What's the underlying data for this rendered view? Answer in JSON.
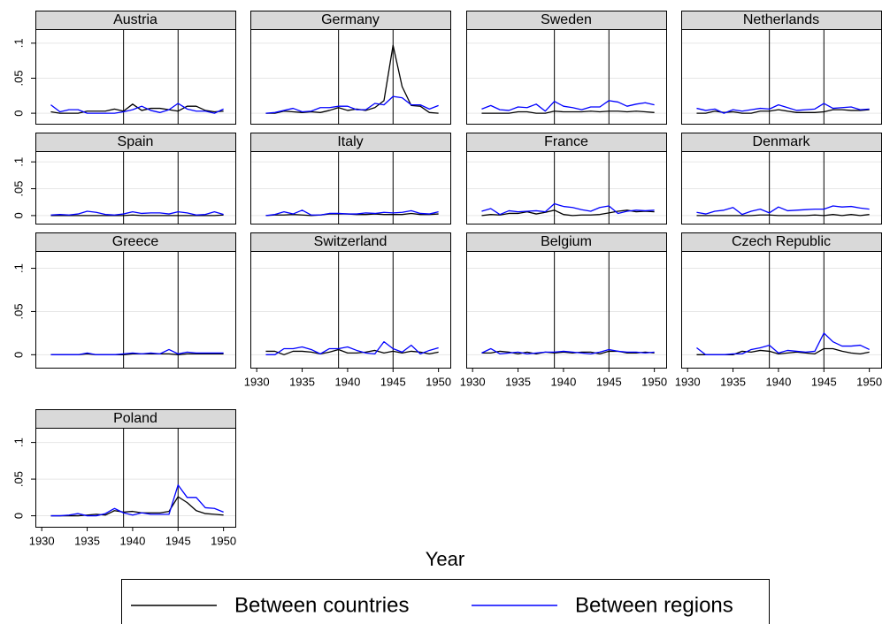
{
  "chart_data": {
    "type": "line",
    "xlabel": "Year",
    "x": [
      1931,
      1932,
      1933,
      1934,
      1935,
      1936,
      1937,
      1938,
      1939,
      1940,
      1941,
      1942,
      1943,
      1944,
      1945,
      1946,
      1947,
      1948,
      1949,
      1950
    ],
    "xlim": [
      1929.3,
      1951.3
    ],
    "xticks": [
      1930,
      1935,
      1940,
      1945,
      1950
    ],
    "ylim": [
      -0.015,
      0.12
    ],
    "yticks": [
      {
        "value": 0,
        "label": "0"
      },
      {
        "value": 0.05,
        "label": ".05"
      },
      {
        "value": 0.1,
        "label": ".1"
      }
    ],
    "grid": true,
    "reference_lines": [
      1939,
      1945
    ],
    "series": [
      {
        "name": "Between countries",
        "color": "#000000"
      },
      {
        "name": "Between regions",
        "color": "#0000ff"
      }
    ],
    "panels": [
      {
        "title": "Austria",
        "values": [
          [
            0.002,
            0,
            0,
            0,
            0.003,
            0.003,
            0.003,
            0.006,
            0.003,
            0.013,
            0.004,
            0.007,
            0.007,
            0.005,
            0.003,
            0.01,
            0.01,
            0.004,
            0.002,
            0.003
          ],
          [
            0.012,
            0.002,
            0.005,
            0.005,
            0,
            0,
            0,
            0,
            0.002,
            0.005,
            0.01,
            0.004,
            0.001,
            0.005,
            0.014,
            0.006,
            0.003,
            0.003,
            0,
            0.006
          ]
        ]
      },
      {
        "title": "Germany",
        "values": [
          [
            0,
            0,
            0.003,
            0.002,
            0.001,
            0.002,
            0.001,
            0.004,
            0.008,
            0.004,
            0.006,
            0.004,
            0.008,
            0.018,
            0.097,
            0.038,
            0.011,
            0.01,
            0.001,
            0
          ],
          [
            0,
            0.001,
            0.004,
            0.007,
            0.002,
            0.003,
            0.008,
            0.008,
            0.01,
            0.01,
            0.005,
            0.005,
            0.014,
            0.012,
            0.024,
            0.022,
            0.012,
            0.012,
            0.006,
            0.011
          ]
        ]
      },
      {
        "title": "Sweden",
        "values": [
          [
            0,
            0,
            0,
            0,
            0.002,
            0.002,
            0,
            0,
            0.003,
            0.002,
            0.002,
            0.002,
            0.003,
            0.002,
            0.003,
            0.003,
            0.002,
            0.003,
            0.002,
            0.001
          ],
          [
            0.006,
            0.011,
            0.005,
            0.004,
            0.009,
            0.008,
            0.013,
            0.003,
            0.017,
            0.01,
            0.008,
            0.005,
            0.009,
            0.009,
            0.018,
            0.016,
            0.01,
            0.013,
            0.015,
            0.012
          ]
        ]
      },
      {
        "title": "Netherlands",
        "values": [
          [
            0,
            0,
            0.003,
            0.001,
            0.002,
            0,
            0,
            0.003,
            0.003,
            0.005,
            0.003,
            0.001,
            0.001,
            0.001,
            0.002,
            0.005,
            0.005,
            0.004,
            0.004,
            0.005
          ],
          [
            0.007,
            0.004,
            0.006,
            0,
            0.005,
            0.003,
            0.005,
            0.007,
            0.006,
            0.012,
            0.008,
            0.004,
            0.005,
            0.006,
            0.014,
            0.007,
            0.008,
            0.009,
            0.005,
            0.006
          ]
        ]
      },
      {
        "title": "Spain",
        "values": [
          [
            0,
            0,
            0,
            0,
            0,
            0,
            0,
            0,
            0,
            0.001,
            0,
            0,
            0,
            0,
            0,
            0,
            0,
            0,
            0,
            0.001
          ],
          [
            0.001,
            0.002,
            0.001,
            0.003,
            0.008,
            0.006,
            0.002,
            0.001,
            0.003,
            0.007,
            0.004,
            0.005,
            0.005,
            0.003,
            0.007,
            0.005,
            0.001,
            0.002,
            0.007,
            0.002
          ]
        ]
      },
      {
        "title": "Italy",
        "values": [
          [
            0,
            0.001,
            0.001,
            0.002,
            0.001,
            0,
            0.001,
            0.003,
            0.003,
            0.003,
            0.002,
            0.002,
            0.003,
            0.002,
            0.002,
            0.002,
            0.004,
            0.002,
            0.002,
            0.003
          ],
          [
            0,
            0.002,
            0.007,
            0.003,
            0.01,
            0.001,
            0.001,
            0.004,
            0.004,
            0.003,
            0.003,
            0.005,
            0.004,
            0.006,
            0.005,
            0.006,
            0.009,
            0.004,
            0.003,
            0.007
          ]
        ]
      },
      {
        "title": "France",
        "values": [
          [
            0,
            0.002,
            0.001,
            0.004,
            0.004,
            0.007,
            0.003,
            0.006,
            0.01,
            0.002,
            0,
            0.001,
            0.001,
            0.002,
            0.005,
            0.008,
            0.01,
            0.007,
            0.008,
            0.007
          ],
          [
            0.008,
            0.013,
            0.002,
            0.009,
            0.007,
            0.008,
            0.009,
            0.007,
            0.022,
            0.017,
            0.015,
            0.011,
            0.008,
            0.015,
            0.018,
            0.004,
            0.008,
            0.01,
            0.009,
            0.01
          ]
        ]
      },
      {
        "title": "Denmark",
        "values": [
          [
            0,
            0,
            0,
            0,
            0,
            0,
            0,
            0.001,
            0.001,
            0,
            0,
            0,
            0,
            0.001,
            0,
            0.002,
            0,
            0.002,
            0,
            0.002
          ],
          [
            0.006,
            0.003,
            0.008,
            0.01,
            0.015,
            0.002,
            0.008,
            0.012,
            0.005,
            0.016,
            0.009,
            0.01,
            0.011,
            0.012,
            0.012,
            0.018,
            0.016,
            0.017,
            0.014,
            0.012
          ]
        ]
      },
      {
        "title": "Greece",
        "values": [
          [
            0,
            0,
            0,
            0,
            0.001,
            0,
            0,
            0,
            0,
            0.001,
            0.001,
            0.001,
            0.001,
            0.001,
            0,
            0.001,
            0.001,
            0.001,
            0.001,
            0.001
          ],
          [
            0,
            0,
            0,
            0,
            0.002,
            0,
            0,
            0,
            0.001,
            0.002,
            0.001,
            0.002,
            0.001,
            0.006,
            0.001,
            0.003,
            0.002,
            0.002,
            0.002,
            0.002
          ]
        ]
      },
      {
        "title": "Switzerland",
        "values": [
          [
            0.004,
            0.004,
            0,
            0.004,
            0.004,
            0.003,
            0.001,
            0.003,
            0.006,
            0.002,
            0.002,
            0.003,
            0.005,
            0.002,
            0.004,
            0.002,
            0.004,
            0.003,
            0.001,
            0.003
          ],
          [
            0,
            0,
            0.007,
            0.007,
            0.009,
            0.006,
            0.001,
            0.007,
            0.007,
            0.009,
            0.005,
            0.002,
            0.001,
            0.015,
            0.007,
            0.003,
            0.011,
            0.001,
            0.005,
            0.008
          ]
        ]
      },
      {
        "title": "Belgium",
        "values": [
          [
            0.002,
            0.002,
            0.004,
            0.003,
            0.001,
            0.003,
            0.001,
            0.003,
            0.002,
            0.003,
            0.002,
            0.003,
            0.003,
            0.001,
            0.004,
            0.004,
            0.002,
            0.002,
            0.003,
            0.002
          ],
          [
            0.002,
            0.007,
            0.001,
            0.002,
            0.003,
            0.001,
            0.002,
            0.003,
            0.003,
            0.004,
            0.003,
            0.002,
            0.001,
            0.003,
            0.006,
            0.004,
            0.003,
            0.003,
            0.002,
            0.003
          ]
        ]
      },
      {
        "title": "Czech Republic",
        "values": [
          [
            0,
            0,
            0,
            0,
            0,
            0.004,
            0.003,
            0.005,
            0.004,
            0.001,
            0.002,
            0.003,
            0.002,
            0.001,
            0.007,
            0.007,
            0.004,
            0.002,
            0.001,
            0.003
          ],
          [
            0.008,
            0,
            0,
            0,
            0.001,
            0.001,
            0.006,
            0.008,
            0.011,
            0.002,
            0.005,
            0.004,
            0.003,
            0.004,
            0.025,
            0.015,
            0.01,
            0.01,
            0.011,
            0.006
          ]
        ]
      },
      {
        "title": "Poland",
        "values": [
          [
            0,
            0,
            0,
            0,
            0.001,
            0.002,
            0.001,
            0.007,
            0.005,
            0.006,
            0.004,
            0.004,
            0.004,
            0.006,
            0.026,
            0.018,
            0.007,
            0.003,
            0.002,
            0.001
          ],
          [
            0,
            0,
            0.001,
            0.003,
            0,
            0,
            0.003,
            0.01,
            0.004,
            0.001,
            0.004,
            0.002,
            0.002,
            0.002,
            0.042,
            0.025,
            0.025,
            0.011,
            0.01,
            0.005
          ]
        ]
      }
    ]
  }
}
